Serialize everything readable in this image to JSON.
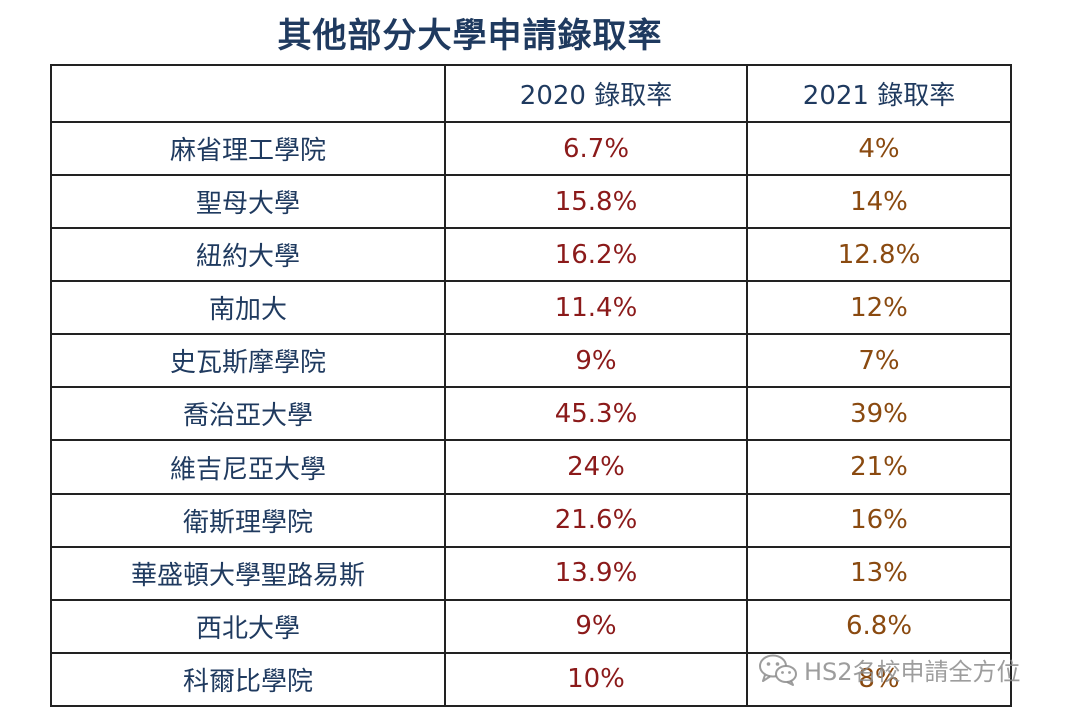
{
  "title": "其他部分大學申請錄取率",
  "table": {
    "headers": [
      "",
      "2020 錄取率",
      "2021 錄取率"
    ],
    "rows": [
      {
        "school": "麻省理工學院",
        "rate_2020": "6.7%",
        "rate_2021": "4%"
      },
      {
        "school": "聖母大學",
        "rate_2020": "15.8%",
        "rate_2021": "14%"
      },
      {
        "school": "紐約大學",
        "rate_2020": "16.2%",
        "rate_2021": "12.8%"
      },
      {
        "school": "南加大",
        "rate_2020": "11.4%",
        "rate_2021": "12%"
      },
      {
        "school": "史瓦斯摩學院",
        "rate_2020": "9%",
        "rate_2021": "7%"
      },
      {
        "school": "喬治亞大學",
        "rate_2020": "45.3%",
        "rate_2021": "39%"
      },
      {
        "school": "維吉尼亞大學",
        "rate_2020": "24%",
        "rate_2021": "21%"
      },
      {
        "school": "衛斯理學院",
        "rate_2020": "21.6%",
        "rate_2021": "16%"
      },
      {
        "school": "華盛頓大學聖路易斯",
        "rate_2020": "13.9%",
        "rate_2021": "13%"
      },
      {
        "school": "西北大學",
        "rate_2020": "9%",
        "rate_2021": "6.8%"
      },
      {
        "school": "科爾比學院",
        "rate_2020": "10%",
        "rate_2021": "8%"
      }
    ]
  },
  "watermark": {
    "text": "HS2名校申請全方位",
    "icon": "wechat-icon"
  },
  "colors": {
    "title": "#1f3a5f",
    "rate_2020": "#8b1a1a",
    "rate_2021": "#8a4a10"
  }
}
